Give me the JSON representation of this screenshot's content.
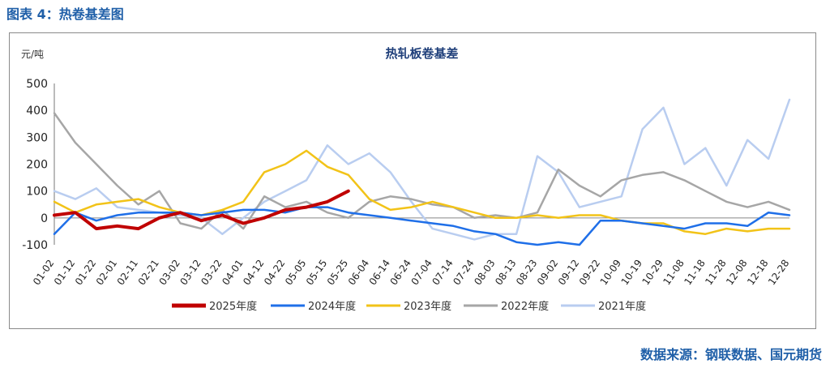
{
  "figure_caption": "图表 4：热卷基差图",
  "source_note": "数据来源：钢联数据、国元期货",
  "chart_data": {
    "type": "line",
    "title": "热轧板卷基差",
    "ylabel": "元/吨",
    "xlabel": "",
    "ylim": [
      -100,
      500
    ],
    "yticks": [
      -100,
      0,
      100,
      200,
      300,
      400,
      500
    ],
    "x_tick_labels": [
      "01-02",
      "01-12",
      "01-22",
      "02-01",
      "02-11",
      "02-21",
      "03-02",
      "03-12",
      "03-22",
      "04-01",
      "04-12",
      "04-22",
      "05-05",
      "05-15",
      "05-25",
      "06-04",
      "06-14",
      "06-24",
      "07-04",
      "07-14",
      "07-24",
      "08-03",
      "08-13",
      "08-23",
      "09-02",
      "09-12",
      "09-22",
      "10-09",
      "10-19",
      "10-29",
      "11-08",
      "11-18",
      "11-28",
      "12-08",
      "12-18",
      "12-28"
    ],
    "legend_position": "bottom",
    "series": [
      {
        "name": "2025年度",
        "color": "#c00000",
        "width": 4,
        "x": [
          0,
          1,
          2,
          3,
          4,
          5,
          6,
          7,
          8,
          9,
          10,
          11,
          12,
          13,
          14
        ],
        "values": [
          10,
          20,
          -40,
          -30,
          -40,
          0,
          20,
          -10,
          10,
          -20,
          0,
          30,
          40,
          60,
          100
        ]
      },
      {
        "name": "2024年度",
        "color": "#1f6fe8",
        "width": 2.5,
        "x": [
          0,
          1,
          2,
          3,
          4,
          5,
          6,
          7,
          8,
          9,
          10,
          11,
          12,
          13,
          14,
          15,
          16,
          17,
          18,
          19,
          20,
          21,
          22,
          23,
          24,
          25,
          26,
          27,
          28,
          29,
          30,
          31,
          32,
          33,
          34,
          35
        ],
        "values": [
          -60,
          20,
          -10,
          10,
          20,
          20,
          20,
          10,
          20,
          30,
          30,
          20,
          40,
          40,
          20,
          10,
          0,
          -10,
          -20,
          -30,
          -50,
          -60,
          -90,
          -100,
          -90,
          -100,
          -10,
          -10,
          -20,
          -30,
          -40,
          -20,
          -20,
          -30,
          20,
          10
        ]
      },
      {
        "name": "2023年度",
        "color": "#f2c318",
        "width": 2.5,
        "x": [
          0,
          1,
          2,
          3,
          4,
          5,
          6,
          7,
          8,
          9,
          10,
          11,
          12,
          13,
          14,
          15,
          16,
          17,
          18,
          19,
          20,
          21,
          22,
          23,
          24,
          25,
          26,
          27,
          28,
          29,
          30,
          31,
          32,
          33,
          34,
          35
        ],
        "values": [
          60,
          20,
          50,
          60,
          70,
          40,
          20,
          10,
          30,
          60,
          170,
          200,
          250,
          190,
          160,
          70,
          30,
          40,
          60,
          40,
          20,
          0,
          0,
          10,
          0,
          10,
          10,
          -10,
          -20,
          -20,
          -50,
          -60,
          -40,
          -50,
          -40,
          -40
        ]
      },
      {
        "name": "2022年度",
        "color": "#a6a6a6",
        "width": 2.5,
        "x": [
          0,
          1,
          2,
          3,
          4,
          5,
          6,
          7,
          8,
          9,
          10,
          11,
          12,
          13,
          14,
          15,
          16,
          17,
          18,
          19,
          20,
          21,
          22,
          23,
          24,
          25,
          26,
          27,
          28,
          29,
          30,
          31,
          32,
          33,
          34,
          35
        ],
        "values": [
          390,
          280,
          200,
          120,
          50,
          100,
          -20,
          -40,
          30,
          -40,
          80,
          40,
          60,
          20,
          0,
          60,
          80,
          70,
          50,
          40,
          0,
          10,
          0,
          20,
          180,
          120,
          80,
          140,
          160,
          170,
          140,
          100,
          60,
          40,
          60,
          30
        ]
      },
      {
        "name": "2021年度",
        "color": "#b9cdf0",
        "width": 2.5,
        "x": [
          0,
          1,
          2,
          3,
          4,
          5,
          6,
          7,
          8,
          9,
          10,
          11,
          12,
          13,
          14,
          15,
          16,
          17,
          18,
          19,
          20,
          21,
          22,
          23,
          24,
          25,
          26,
          27,
          28,
          29,
          30,
          31,
          32,
          33,
          34,
          35
        ],
        "values": [
          100,
          70,
          110,
          40,
          30,
          20,
          10,
          0,
          -60,
          0,
          60,
          100,
          140,
          270,
          200,
          240,
          170,
          60,
          -40,
          -60,
          -80,
          -60,
          -60,
          230,
          170,
          40,
          60,
          80,
          330,
          410,
          200,
          260,
          120,
          290,
          220,
          440
        ]
      }
    ]
  }
}
